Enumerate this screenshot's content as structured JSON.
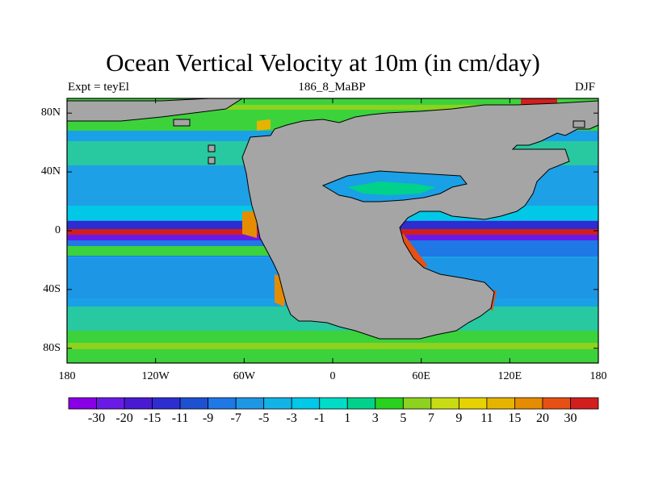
{
  "title": "Ocean Vertical Velocity at 10m (in cm/day)",
  "left_subtitle": "Expt = teyEl",
  "center_subtitle": "186_8_MaBP",
  "right_subtitle": "DJF",
  "land_color": "#a5a5a5",
  "lat_labels": [
    {
      "text": "80N",
      "lat": 80
    },
    {
      "text": "40N",
      "lat": 40
    },
    {
      "text": "0",
      "lat": 0
    },
    {
      "text": "40S",
      "lat": -40
    },
    {
      "text": "80S",
      "lat": -80
    }
  ],
  "lon_labels": [
    {
      "text": "180",
      "lon": -180
    },
    {
      "text": "120W",
      "lon": -120
    },
    {
      "text": "60W",
      "lon": -60
    },
    {
      "text": "0",
      "lon": 0
    },
    {
      "text": "60E",
      "lon": 60
    },
    {
      "text": "120E",
      "lon": 120
    },
    {
      "text": "180",
      "lon": 180
    }
  ],
  "colorbar": {
    "labels": [
      "-30",
      "-20",
      "-15",
      "-11",
      "-9",
      "-7",
      "-5",
      "-3",
      "-1",
      "1",
      "3",
      "5",
      "7",
      "9",
      "11",
      "15",
      "20",
      "30"
    ],
    "colors": [
      "#8a00e6",
      "#6a1ae6",
      "#4a1ad2",
      "#2d2dd2",
      "#1e50d2",
      "#1e78e6",
      "#1e96e6",
      "#12b4e6",
      "#00c8e6",
      "#00dcc8",
      "#00d28c",
      "#28d21e",
      "#8cd21e",
      "#c8dc14",
      "#e6d200",
      "#e6b400",
      "#e68c00",
      "#e65014",
      "#d21e1e"
    ]
  }
}
